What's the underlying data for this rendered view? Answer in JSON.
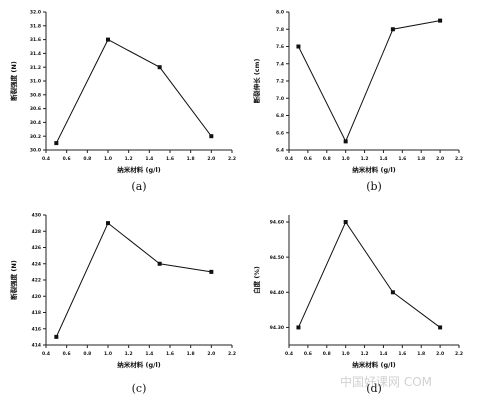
{
  "figure": {
    "watermark": "中国好课网 COM"
  },
  "chart_data": [
    {
      "panel": "(a)",
      "type": "line",
      "xlabel": "纳米材料 (g/l)",
      "ylabel": "断裂强度 (N)",
      "x": [
        0.5,
        1.0,
        1.5,
        2.0
      ],
      "series": [
        {
          "values": [
            30.1,
            31.6,
            31.2,
            30.2
          ]
        }
      ],
      "xlim": [
        0.4,
        2.2
      ],
      "ylim": [
        30.0,
        32.0
      ],
      "xticks": [
        "0.4",
        "0.6",
        "0.8",
        "1.0",
        "1.2",
        "1.4",
        "1.6",
        "1.8",
        "2.0",
        "2.2"
      ],
      "yticks": [
        "30.0",
        "30.2",
        "30.4",
        "30.6",
        "30.8",
        "31.0",
        "31.2",
        "31.4",
        "31.6",
        "31.8",
        "32.0"
      ]
    },
    {
      "panel": "(b)",
      "type": "line",
      "xlabel": "纳米材料 (g/l)",
      "ylabel": "断裂伸长 (cm)",
      "x": [
        0.5,
        1.0,
        1.5,
        2.0
      ],
      "series": [
        {
          "values": [
            7.6,
            6.5,
            7.8,
            7.9
          ]
        }
      ],
      "xlim": [
        0.4,
        2.2
      ],
      "ylim": [
        6.4,
        8.0
      ],
      "xticks": [
        "0.4",
        "0.6",
        "0.8",
        "1.0",
        "1.2",
        "1.4",
        "1.6",
        "1.8",
        "2.0",
        "2.2"
      ],
      "yticks": [
        "6.4",
        "6.6",
        "6.8",
        "7.0",
        "7.2",
        "7.4",
        "7.6",
        "7.8",
        "8.0"
      ]
    },
    {
      "panel": "(c)",
      "type": "line",
      "xlabel": "纳米材料 (g/l)",
      "ylabel": "断裂强度 (N)",
      "x": [
        0.5,
        1.0,
        1.5,
        2.0
      ],
      "series": [
        {
          "values": [
            415,
            429,
            424,
            423
          ]
        }
      ],
      "xlim": [
        0.4,
        2.2
      ],
      "ylim": [
        414,
        430
      ],
      "xticks": [
        "0.4",
        "0.6",
        "0.8",
        "1.0",
        "1.2",
        "1.4",
        "1.6",
        "1.8",
        "2.0",
        "2.2"
      ],
      "yticks": [
        "414",
        "416",
        "418",
        "420",
        "422",
        "424",
        "426",
        "428",
        "430"
      ]
    },
    {
      "panel": "(d)",
      "type": "line",
      "xlabel": "纳米材料 (g/l)",
      "ylabel": "白度 (%)",
      "x": [
        0.5,
        1.0,
        1.5,
        2.0
      ],
      "series": [
        {
          "values": [
            94.3,
            94.6,
            94.4,
            94.3
          ]
        }
      ],
      "xlim": [
        0.4,
        2.2
      ],
      "ylim": [
        94.25,
        94.62
      ],
      "xticks": [
        "0.4",
        "0.6",
        "0.8",
        "1.0",
        "1.2",
        "1.4",
        "1.6",
        "1.8",
        "2.0",
        "2.2"
      ],
      "yticks": [
        "94.30",
        "94.40",
        "94.50",
        "94.60"
      ]
    }
  ]
}
